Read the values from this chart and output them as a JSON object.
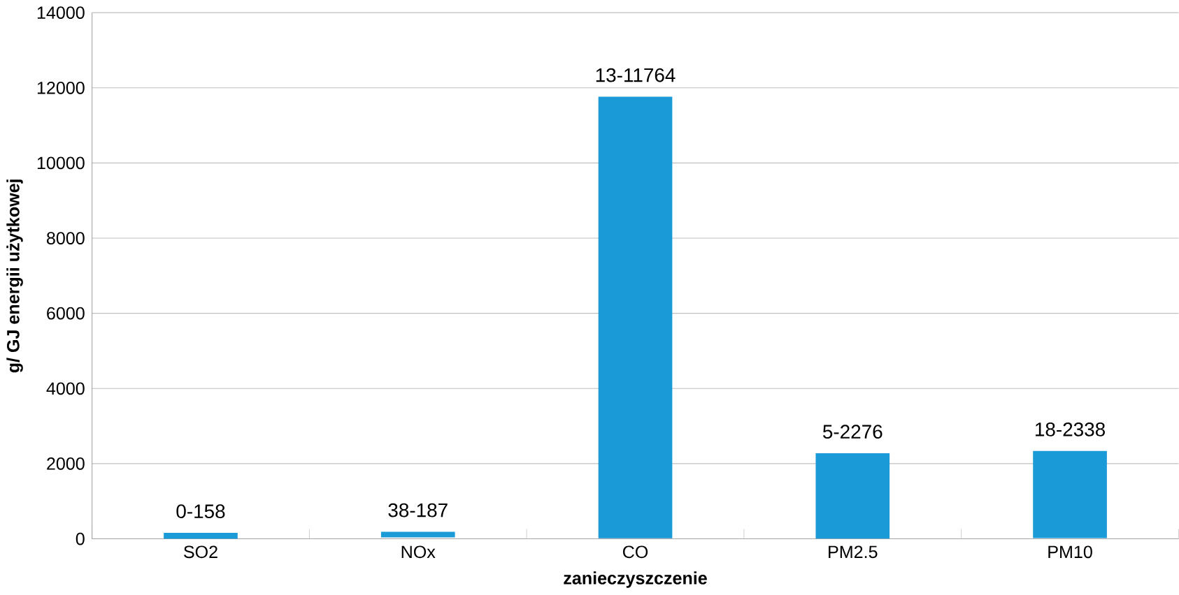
{
  "chart_data": {
    "type": "bar",
    "xlabel": "zanieczyszczenie",
    "ylabel": "g/ GJ energii użytkowej",
    "categories": [
      "SO2",
      "NOx",
      "CO",
      "PM2.5",
      "PM10"
    ],
    "base": [
      0,
      38,
      13,
      5,
      18
    ],
    "values": [
      158,
      149,
      11751,
      2271,
      2320
    ],
    "value_labels": [
      "0-158",
      "38-187",
      "13-11764",
      "5-2276",
      "18-2338"
    ],
    "color": "#1a9ad6",
    "ylim": [
      0,
      14000
    ],
    "yticks": [
      0,
      2000,
      4000,
      6000,
      8000,
      10000,
      12000,
      14000
    ],
    "grid": "y"
  }
}
